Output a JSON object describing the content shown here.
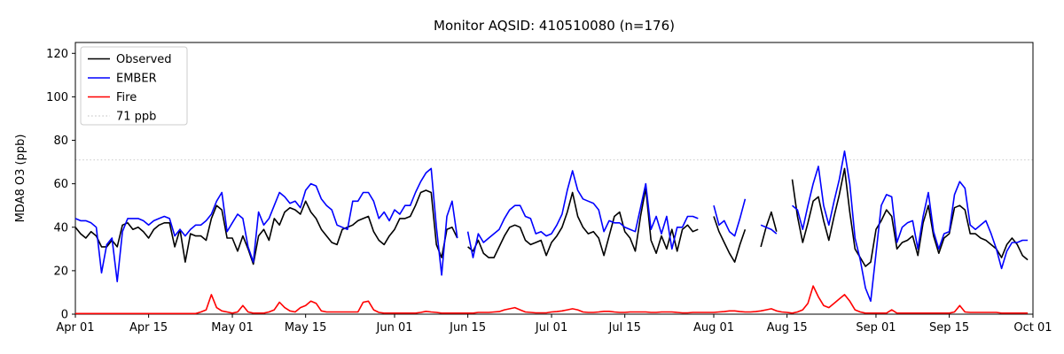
{
  "chart_data": {
    "type": "line",
    "title": "Monitor AQSID: 410510080 (n=176)",
    "xlabel": "",
    "ylabel": "MDA8 O3 (ppb)",
    "ylim": [
      0,
      125
    ],
    "yticks": [
      0,
      20,
      40,
      60,
      80,
      100,
      120
    ],
    "x_total_days": 183,
    "xtick_labels": [
      "Apr 01",
      "Apr 15",
      "May 01",
      "May 15",
      "Jun 01",
      "Jun 15",
      "Jul 01",
      "Jul 15",
      "Aug 01",
      "Aug 15",
      "Sep 01",
      "Sep 15",
      "Oct 01"
    ],
    "xtick_days": [
      0,
      14,
      30,
      44,
      61,
      75,
      91,
      105,
      122,
      136,
      153,
      167,
      183
    ],
    "grid": false,
    "legend_position": "upper-left",
    "threshold": {
      "value": 71,
      "label": "71 ppb",
      "color": "#d3d3d3",
      "style": "dotted"
    },
    "legend": [
      {
        "label": "Observed",
        "color": "#000000",
        "style": "solid"
      },
      {
        "label": "EMBER",
        "color": "#0000ff",
        "style": "solid"
      },
      {
        "label": "Fire",
        "color": "#ff0000",
        "style": "solid"
      },
      {
        "label": "71 ppb",
        "color": "#d3d3d3",
        "style": "dotted"
      }
    ],
    "series": [
      {
        "name": "Observed",
        "color": "#000000",
        "values": [
          40,
          37,
          35,
          38,
          36,
          31,
          31,
          34,
          31,
          41,
          42,
          39,
          40,
          38,
          35,
          39,
          41,
          42,
          42,
          31,
          39,
          24,
          37,
          36,
          36,
          34,
          44,
          50,
          48,
          35,
          35,
          29,
          36,
          30,
          23,
          36,
          39,
          34,
          44,
          41,
          47,
          49,
          48,
          46,
          52,
          47,
          44,
          39,
          36,
          33,
          32,
          39,
          40,
          41,
          43,
          44,
          45,
          38,
          34,
          32,
          36,
          39,
          44,
          44,
          45,
          50,
          56,
          57,
          56,
          32,
          26,
          39,
          40,
          35,
          null,
          31,
          29,
          34,
          28,
          26,
          26,
          31,
          36,
          40,
          41,
          40,
          34,
          32,
          33,
          34,
          27,
          33,
          36,
          40,
          47,
          56,
          45,
          40,
          37,
          38,
          35,
          27,
          36,
          45,
          47,
          38,
          35,
          29,
          45,
          58,
          34,
          28,
          36,
          30,
          39,
          29,
          39,
          41,
          38,
          39,
          null,
          null,
          45,
          38,
          33,
          28,
          24,
          32,
          39,
          null,
          null,
          31,
          40,
          47,
          38,
          null,
          null,
          62,
          45,
          33,
          42,
          52,
          54,
          43,
          34,
          45,
          55,
          67,
          47,
          30,
          26,
          22,
          24,
          39,
          43,
          48,
          45,
          30,
          33,
          34,
          36,
          27,
          42,
          50,
          36,
          28,
          35,
          37,
          49,
          50,
          48,
          37,
          37,
          35,
          34,
          32,
          30,
          26,
          32,
          35,
          32,
          27,
          25
        ]
      },
      {
        "name": "EMBER",
        "color": "#0000ff",
        "values": [
          44,
          43,
          43,
          42,
          40,
          19,
          32,
          35,
          15,
          38,
          44,
          44,
          44,
          43,
          41,
          43,
          44,
          45,
          44,
          36,
          39,
          36,
          39,
          41,
          41,
          43,
          46,
          52,
          56,
          38,
          42,
          46,
          44,
          31,
          24,
          47,
          41,
          44,
          50,
          56,
          54,
          51,
          52,
          49,
          57,
          60,
          59,
          53,
          50,
          48,
          41,
          40,
          39,
          52,
          52,
          56,
          56,
          52,
          44,
          47,
          43,
          48,
          46,
          50,
          50,
          56,
          61,
          65,
          67,
          40,
          18,
          45,
          52,
          35,
          null,
          38,
          26,
          37,
          33,
          35,
          37,
          39,
          44,
          48,
          50,
          50,
          45,
          44,
          37,
          38,
          36,
          37,
          41,
          46,
          57,
          66,
          57,
          53,
          52,
          51,
          48,
          38,
          43,
          42,
          42,
          40,
          39,
          38,
          49,
          60,
          39,
          45,
          37,
          45,
          30,
          40,
          40,
          45,
          45,
          44,
          null,
          null,
          50,
          41,
          43,
          38,
          36,
          44,
          53,
          null,
          null,
          41,
          40,
          39,
          37,
          null,
          null,
          50,
          48,
          39,
          50,
          60,
          68,
          50,
          41,
          52,
          62,
          75,
          60,
          35,
          25,
          12,
          6,
          28,
          50,
          55,
          54,
          33,
          40,
          42,
          43,
          30,
          45,
          56,
          38,
          30,
          37,
          38,
          55,
          61,
          58,
          41,
          39,
          41,
          43,
          37,
          30,
          21,
          29,
          33,
          33,
          34,
          34
        ]
      },
      {
        "name": "Fire",
        "color": "#ff0000",
        "values": [
          0.3,
          0.3,
          0.3,
          0.3,
          0.3,
          0.3,
          0.3,
          0.3,
          0.3,
          0.3,
          0.3,
          0.3,
          0.3,
          0.3,
          0.3,
          0.3,
          0.3,
          0.3,
          0.3,
          0.3,
          0.3,
          0.3,
          0.3,
          0.3,
          1,
          2,
          9,
          3,
          1.5,
          1,
          0.5,
          1,
          4,
          1,
          0.5,
          0.5,
          0.5,
          1,
          2,
          5.5,
          3,
          1.5,
          1,
          3,
          4,
          6,
          5,
          1.5,
          1,
          1,
          1,
          1,
          1,
          1,
          1,
          5.5,
          6,
          2,
          0.8,
          0.5,
          0.5,
          0.5,
          0.5,
          0.5,
          0.5,
          0.5,
          0.8,
          1.3,
          1,
          0.8,
          0.5,
          0.5,
          0.5,
          0.5,
          0.5,
          0.5,
          0.5,
          0.8,
          0.8,
          0.8,
          1,
          1.2,
          2,
          2.5,
          3,
          2,
          1,
          0.8,
          0.6,
          0.6,
          0.6,
          1,
          1.2,
          1.5,
          2,
          2.5,
          2,
          1,
          0.8,
          0.8,
          1,
          1.3,
          1.3,
          1,
          0.8,
          0.8,
          1,
          1,
          1,
          1,
          0.8,
          0.8,
          1,
          1,
          1,
          0.8,
          0.6,
          0.6,
          0.8,
          0.8,
          0.8,
          0.8,
          0.8,
          1,
          1.2,
          1.5,
          1.5,
          1.2,
          1,
          1,
          1.2,
          1.5,
          2,
          2.5,
          1.5,
          1,
          0.8,
          0.5,
          1,
          2,
          5,
          13,
          8,
          4,
          3,
          5,
          7,
          9,
          6,
          2,
          1,
          0.5,
          0.5,
          0.5,
          0.5,
          0.5,
          2,
          0.5,
          0.5,
          0.5,
          0.5,
          0.5,
          0.5,
          0.5,
          0.5,
          0.5,
          0.5,
          0.5,
          1,
          4,
          1,
          0.8,
          0.8,
          0.8,
          0.8,
          0.8,
          0.8,
          0.5,
          0.5,
          0.5,
          0.5,
          0.5,
          0.5
        ]
      }
    ]
  }
}
